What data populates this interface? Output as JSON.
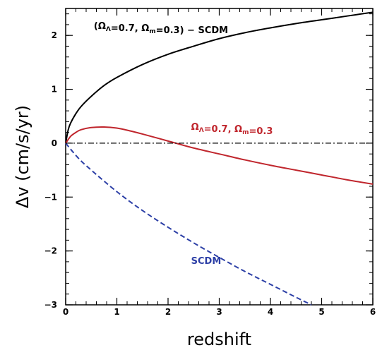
{
  "chart_data": {
    "type": "line",
    "title": "",
    "xlabel": "redshift",
    "ylabel": "Δv (cm/s/yr)",
    "xlim": [
      0,
      6
    ],
    "ylim": [
      -3,
      2.5
    ],
    "x_ticks": [
      0,
      1,
      2,
      3,
      4,
      5,
      6
    ],
    "y_ticks": [
      -3,
      -2,
      -1,
      0,
      1,
      2
    ],
    "grid": false,
    "legend": "none",
    "series": [
      {
        "style": "solid",
        "color": "#000000",
        "x": [
          0,
          0.05,
          0.1,
          0.2,
          0.3,
          0.5,
          0.75,
          1.0,
          1.5,
          2.0,
          2.5,
          3.0,
          3.5,
          4.0,
          4.5,
          5.0,
          5.5,
          6.0
        ],
        "y": [
          0,
          0.25,
          0.38,
          0.55,
          0.68,
          0.87,
          1.07,
          1.22,
          1.46,
          1.65,
          1.8,
          1.94,
          2.05,
          2.14,
          2.22,
          2.29,
          2.36,
          2.43
        ]
      },
      {
        "style": "solid",
        "color": "#c0262d",
        "x": [
          0,
          0.1,
          0.2,
          0.3,
          0.5,
          0.75,
          1.0,
          1.25,
          1.5,
          2.0,
          2.5,
          3.0,
          3.5,
          4.0,
          4.5,
          5.0,
          5.5,
          6.0
        ],
        "y": [
          0,
          0.13,
          0.2,
          0.25,
          0.29,
          0.3,
          0.28,
          0.23,
          0.17,
          0.04,
          -0.09,
          -0.2,
          -0.31,
          -0.41,
          -0.5,
          -0.59,
          -0.68,
          -0.76
        ]
      },
      {
        "style": "dashed",
        "color": "#2c3fa6",
        "x": [
          0,
          0.25,
          0.5,
          1.0,
          1.5,
          2.0,
          2.5,
          3.0,
          3.5,
          4.0,
          4.5,
          4.8
        ],
        "y": [
          0,
          -0.28,
          -0.5,
          -0.9,
          -1.25,
          -1.56,
          -1.85,
          -2.12,
          -2.38,
          -2.62,
          -2.86,
          -3.0
        ]
      },
      {
        "style": "dash-dot",
        "color": "#000000",
        "x": [
          0,
          6
        ],
        "y": [
          0,
          0
        ]
      }
    ],
    "annotations": [
      {
        "text": "(Ω",
        "sub": "Λ",
        "text2": "=0.7, Ω",
        "sub2": "m",
        "text3": "=0.3) − SCDM",
        "color": "#000000",
        "at_x": 0.55,
        "at_y": 2.12
      },
      {
        "text": "Ω",
        "sub": "Λ",
        "text2": "=0.7, Ω",
        "sub2": "m",
        "text3": "=0.3",
        "color": "#c0262d",
        "at_x": 2.45,
        "at_y": 0.25
      },
      {
        "text": "SCDM",
        "sub": "",
        "text2": "",
        "sub2": "",
        "text3": "",
        "color": "#2c3fa6",
        "at_x": 2.45,
        "at_y": -2.24
      }
    ]
  }
}
